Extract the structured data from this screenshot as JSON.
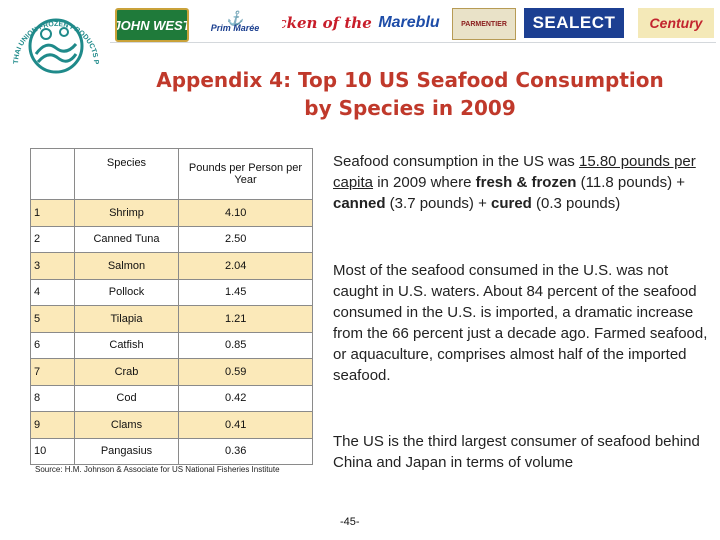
{
  "brands": {
    "b1": "JOHN WEST",
    "b2_top": "Prim Marée",
    "b3": "Chicken of the Sea",
    "b4": "Mareblu",
    "b5": "PARMENTIER",
    "b6": "SEALECT",
    "b7": "Century"
  },
  "round_logo": {
    "text": "THAI UNION FROZEN PRODUCTS PCL",
    "color": "#1f8a8a"
  },
  "title": "Appendix 4: Top 10 US Seafood Consumption\nby Species in 2009",
  "table": {
    "headers": {
      "rank": "",
      "species": "Species",
      "value": "Pounds per Person per Year"
    },
    "rows": [
      {
        "rank": "1",
        "species": "Shrimp",
        "value": "4.10"
      },
      {
        "rank": "2",
        "species": "Canned Tuna",
        "value": "2.50"
      },
      {
        "rank": "3",
        "species": "Salmon",
        "value": "2.04"
      },
      {
        "rank": "4",
        "species": "Pollock",
        "value": "1.45"
      },
      {
        "rank": "5",
        "species": "Tilapia",
        "value": "1.21"
      },
      {
        "rank": "6",
        "species": "Catfish",
        "value": "0.85"
      },
      {
        "rank": "7",
        "species": "Crab",
        "value": "0.59"
      },
      {
        "rank": "8",
        "species": "Cod",
        "value": "0.42"
      },
      {
        "rank": "9",
        "species": "Clams",
        "value": "0.41"
      },
      {
        "rank": "10",
        "species": "Pangasius",
        "value": "0.36"
      }
    ],
    "row_colors": {
      "odd": "#fbe9b9",
      "even": "#ffffff"
    }
  },
  "source": "Source: H.M. Johnson & Associate for US National Fisheries Institute",
  "paragraph1": {
    "t1": "Seafood consumption in the US was ",
    "u1": "15.80 pounds per capita",
    "t2": " in 2009 where ",
    "b1": "fresh & frozen",
    "t3": " (11.8 pounds) + ",
    "b2": "canned",
    "t4": " (3.7 pounds) + ",
    "b3": "cured",
    "t5": " (0.3 pounds)"
  },
  "paragraph2": "Most of the seafood consumed in the U.S. was not caught in U.S. waters. About 84 percent of the seafood consumed in the U.S. is imported, a dramatic increase from the 66 percent just a decade ago. Farmed seafood, or aquaculture, comprises almost half of the imported seafood.",
  "paragraph3": "The US is the third largest consumer of seafood behind China and Japan in terms of volume",
  "page_number": "-45-",
  "colors": {
    "title": "#c0392b"
  }
}
